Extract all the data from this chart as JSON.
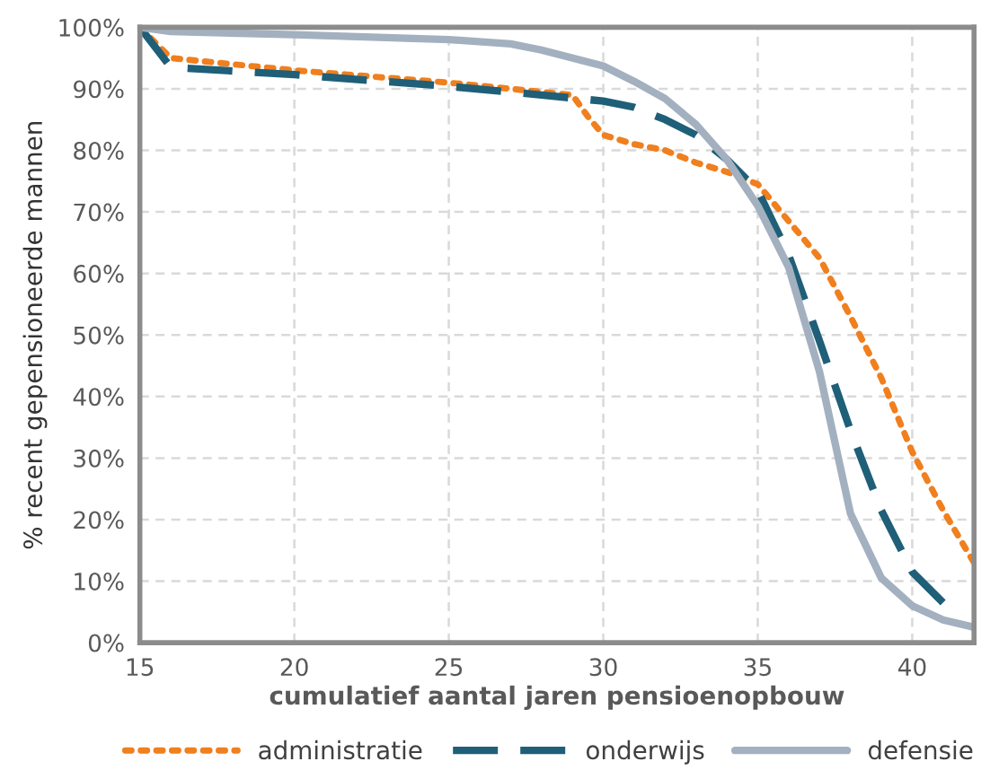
{
  "chart_data": {
    "type": "line",
    "xlabel": "cumulatief aantal jaren pensioenopbouw",
    "ylabel": "% recent gepensioneerde mannen",
    "xlim": [
      15,
      42
    ],
    "xticks": [
      15,
      20,
      25,
      30,
      35,
      40
    ],
    "ylim": [
      0,
      100
    ],
    "yticks": [
      {
        "value": 0,
        "label": "0%"
      },
      {
        "value": 10,
        "label": "10%"
      },
      {
        "value": 20,
        "label": "20%"
      },
      {
        "value": 30,
        "label": "30%"
      },
      {
        "value": 40,
        "label": "40%"
      },
      {
        "value": 50,
        "label": "50%"
      },
      {
        "value": 60,
        "label": "60%"
      },
      {
        "value": 70,
        "label": "70%"
      },
      {
        "value": 80,
        "label": "80%"
      },
      {
        "value": 90,
        "label": "90%"
      },
      {
        "value": 100,
        "label": "100%"
      }
    ],
    "grid": true,
    "legend": "bottom",
    "marker": "none",
    "series": [
      {
        "name": "administratie",
        "color": "#f07f1e",
        "line_style": "dotted",
        "x": [
          15,
          16,
          20,
          25,
          28,
          29,
          29.5,
          30,
          31,
          32,
          33,
          34,
          35,
          36,
          37,
          38,
          39,
          40,
          41,
          42
        ],
        "values": [
          100,
          95,
          93,
          91,
          89.5,
          89,
          85.5,
          82.5,
          81,
          80,
          78,
          76.5,
          74.5,
          68.5,
          62.5,
          53,
          43,
          31,
          21.5,
          13
        ]
      },
      {
        "name": "onderwijs",
        "color": "#1f5f78",
        "line_style": "dashed",
        "x": [
          15,
          16,
          20,
          25,
          28,
          30,
          31,
          32,
          33,
          34,
          35,
          36,
          37,
          38,
          39,
          40,
          41,
          41.5
        ],
        "values": [
          100,
          93.5,
          92.3,
          90.4,
          89,
          88,
          87,
          85,
          82.5,
          78.5,
          73.5,
          63,
          49,
          34.5,
          21.5,
          11.5,
          6.5,
          4.5
        ]
      },
      {
        "name": "defensie",
        "color": "#a3b0bf",
        "line_style": "solid",
        "x": [
          15,
          16,
          20,
          25,
          27,
          28,
          30,
          31,
          32,
          33,
          34,
          35,
          36,
          37,
          38,
          39,
          40,
          41,
          42
        ],
        "values": [
          100,
          99.3,
          98.8,
          98,
          97.3,
          96.3,
          93.7,
          91.2,
          88.4,
          84.2,
          78.5,
          71,
          61,
          44,
          21,
          10.5,
          6,
          3.7,
          2.5
        ]
      }
    ]
  }
}
